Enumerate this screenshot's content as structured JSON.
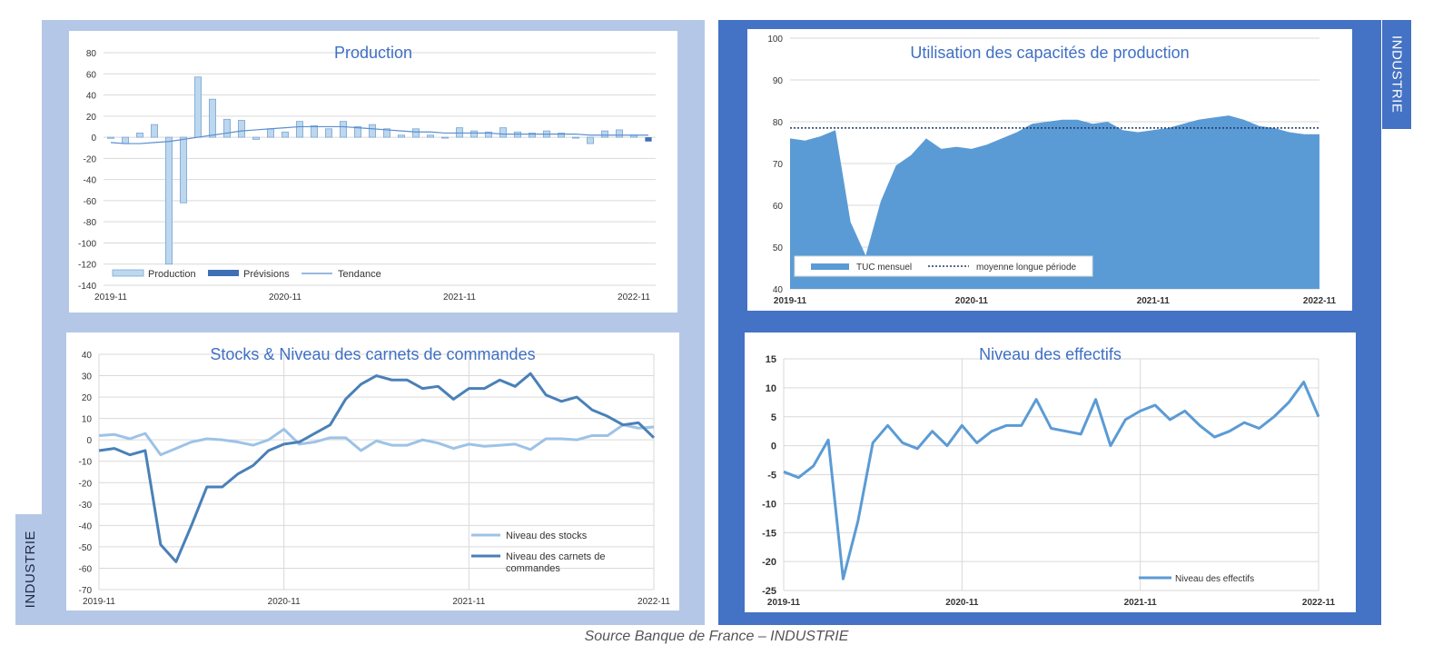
{
  "side_tabs": {
    "top_right": "INDUSTRIE",
    "bottom_left": "INDUSTRIE"
  },
  "footer": {
    "source": "Source Banque de France – INDUSTRIE"
  },
  "colors": {
    "left_panel": "#b4c7e7",
    "right_panel": "#4472c4",
    "title": "#3f6fc4"
  },
  "chart_data": [
    {
      "id": "production",
      "type": "bar",
      "title": "Production",
      "x_ticks": [
        "2019-11",
        "2020-11",
        "2021-11",
        "2022-11"
      ],
      "y_ticks": [
        "80",
        "60",
        "40",
        "20",
        "0",
        "-20",
        "-40",
        "-60",
        "-80",
        "-100",
        "-120",
        "-140"
      ],
      "ylim": [
        -140,
        80
      ],
      "legend": [
        "Production",
        "Prévisions",
        "Tendance"
      ],
      "series": [
        {
          "name": "Production",
          "kind": "bar",
          "values": [
            -1,
            -6,
            4,
            12,
            -120,
            -62,
            57,
            36,
            17,
            16,
            -2,
            8,
            5,
            15,
            11,
            8,
            15,
            10,
            12,
            8,
            2,
            8,
            2,
            0,
            9,
            6,
            5,
            9,
            5,
            4,
            6,
            4,
            0,
            -6,
            6,
            7,
            2
          ]
        },
        {
          "name": "Prévisions",
          "kind": "bar",
          "values_last": [
            -4
          ]
        },
        {
          "name": "Tendance",
          "kind": "line",
          "values": [
            -5,
            -6,
            -6,
            -5,
            -4,
            -2,
            0,
            2,
            4,
            6,
            7,
            8,
            9,
            10,
            10,
            10,
            10,
            9,
            8,
            7,
            6,
            5,
            5,
            4,
            4,
            4,
            4,
            3,
            3,
            3,
            3,
            3,
            3,
            2,
            2,
            2,
            2,
            2
          ]
        }
      ]
    },
    {
      "id": "tuc",
      "type": "area",
      "title": "Utilisation des capacités de production",
      "x_ticks": [
        "2019-11",
        "2020-11",
        "2021-11",
        "2022-11"
      ],
      "y_ticks": [
        "100",
        "90",
        "80",
        "70",
        "60",
        "50",
        "40"
      ],
      "ylim": [
        40,
        100
      ],
      "legend": [
        "TUC mensuel",
        "moyenne longue période"
      ],
      "series": [
        {
          "name": "TUC mensuel",
          "values": [
            76,
            75.5,
            76.5,
            78,
            56,
            48,
            61,
            69.5,
            72,
            76,
            73.5,
            74,
            73.5,
            74.5,
            76,
            77.5,
            79.5,
            80,
            80.5,
            80.5,
            79.5,
            80,
            78,
            77.5,
            78,
            78.5,
            79.5,
            80.5,
            81,
            81.5,
            80.5,
            79,
            78.5,
            77.5,
            77,
            77
          ]
        },
        {
          "name": "moyenne longue période",
          "value": 78.5
        }
      ]
    },
    {
      "id": "stocks",
      "type": "line",
      "title": "Stocks & Niveau des carnets de commandes",
      "x_ticks": [
        "2019-11",
        "2020-11",
        "2021-11",
        "2022-11"
      ],
      "y_ticks": [
        "40",
        "30",
        "20",
        "10",
        "0",
        "-10",
        "-20",
        "-30",
        "-40",
        "-50",
        "-60",
        "-70"
      ],
      "ylim": [
        -70,
        40
      ],
      "legend": [
        "Niveau des stocks",
        "Niveau des carnets de commandes"
      ],
      "series": [
        {
          "name": "Niveau des stocks",
          "values": [
            2,
            2.5,
            0.5,
            3,
            -7,
            -4,
            -1,
            0.5,
            0,
            -1,
            -2.5,
            0,
            5,
            -2,
            -1,
            1,
            1,
            -5,
            -0.5,
            -2.5,
            -2.5,
            0,
            -1.5,
            -4,
            -2,
            -3,
            -2.5,
            -2,
            -4.5,
            0.5,
            0.5,
            0,
            2,
            2,
            7,
            5.5,
            6
          ]
        },
        {
          "name": "Niveau des carnets de commandes",
          "values": [
            -5,
            -4,
            -7,
            -5,
            -49,
            -57,
            -40,
            -22,
            -22,
            -16,
            -12,
            -5,
            -2,
            -1,
            3,
            7,
            19,
            26,
            30,
            28,
            28,
            24,
            25,
            19,
            24,
            24,
            28,
            25,
            31,
            21,
            18,
            20,
            14,
            11,
            7,
            8,
            1
          ]
        }
      ]
    },
    {
      "id": "effectifs",
      "type": "line",
      "title": "Niveau des effectifs",
      "x_ticks": [
        "2019-11",
        "2020-11",
        "2021-11",
        "2022-11"
      ],
      "y_ticks": [
        "15",
        "10",
        "5",
        "0",
        "-5",
        "-10",
        "-15",
        "-20",
        "-25"
      ],
      "ylim": [
        -25,
        15
      ],
      "legend": [
        "Niveau des effectifs"
      ],
      "series": [
        {
          "name": "Niveau des effectifs",
          "values": [
            -4.5,
            -5.5,
            -3.5,
            1,
            -23,
            -13,
            0.5,
            3.5,
            0.5,
            -0.5,
            2.5,
            0,
            3.5,
            0.5,
            2.5,
            3.5,
            3.5,
            8,
            3,
            2.5,
            2,
            8,
            0,
            4.5,
            6,
            7,
            4.5,
            6,
            3.5,
            1.5,
            2.5,
            4,
            3,
            5,
            7.5,
            11,
            5
          ]
        }
      ]
    }
  ]
}
